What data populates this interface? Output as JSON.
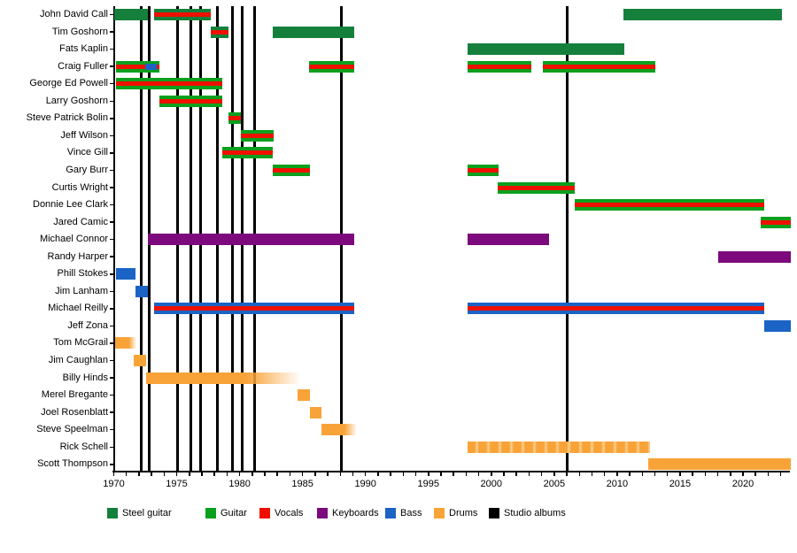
{
  "chart_data": {
    "type": "bar",
    "subtype": "membership-timeline-gantt",
    "title": "",
    "x_axis": {
      "min": 1970,
      "max": 2023.8,
      "major_tick_labels": [
        "1970",
        "1975",
        "1980",
        "1985",
        "1990",
        "1995",
        "2000",
        "2005",
        "2010",
        "2015",
        "2020"
      ],
      "major_tick_years": [
        1970,
        1975,
        1980,
        1985,
        1990,
        1995,
        2000,
        2005,
        2010,
        2015,
        2020
      ],
      "minor_tick_interval": 1,
      "grid": false
    },
    "colors": {
      "steel_guitar": "#15803c",
      "guitar": "#0aa01e",
      "vocals": "#ee1100",
      "keyboards": "#7c0a7c",
      "bass": "#1b63c5",
      "drums": "#f8a338",
      "studio_albums": "#000000"
    },
    "legend": [
      {
        "key": "steel_guitar",
        "label": "Steel guitar"
      },
      {
        "key": "guitar",
        "label": "Guitar"
      },
      {
        "key": "vocals",
        "label": "Vocals"
      },
      {
        "key": "keyboards",
        "label": "Keyboards"
      },
      {
        "key": "bass",
        "label": "Bass"
      },
      {
        "key": "drums",
        "label": "Drums"
      },
      {
        "key": "studio_albums",
        "label": "Studio albums"
      }
    ],
    "studio_album_years": [
      1972.2,
      1972.8,
      1975.1,
      1976.1,
      1976.9,
      1978.2,
      1979.4,
      1980.2,
      1981.2,
      1988.1,
      2006.0
    ],
    "members": [
      {
        "name": "John David Call",
        "segments": [
          {
            "start": 1970.0,
            "end": 1972.7,
            "instrument": "steel_guitar",
            "vocals": false
          },
          {
            "start": 1973.2,
            "end": 1977.7,
            "instrument": "steel_guitar",
            "vocals": true
          },
          {
            "start": 2010.5,
            "end": 2023.1,
            "instrument": "steel_guitar",
            "vocals": false
          }
        ]
      },
      {
        "name": "Tim Goshorn",
        "segments": [
          {
            "start": 1977.7,
            "end": 1979.1,
            "instrument": "steel_guitar",
            "vocals": true
          },
          {
            "start": 1982.6,
            "end": 1989.1,
            "instrument": "steel_guitar",
            "vocals": false
          }
        ]
      },
      {
        "name": "Fats Kaplin",
        "segments": [
          {
            "start": 1998.1,
            "end": 2010.6,
            "instrument": "steel_guitar",
            "vocals": false
          }
        ]
      },
      {
        "name": "Craig Fuller",
        "segments": [
          {
            "start": 1970.2,
            "end": 1973.6,
            "instrument": "guitar",
            "vocals": true
          },
          {
            "start": 1985.5,
            "end": 1989.1,
            "instrument": "guitar",
            "vocals": true
          },
          {
            "start": 1998.1,
            "end": 2003.2,
            "instrument": "guitar",
            "vocals": true
          },
          {
            "start": 2004.1,
            "end": 2013.0,
            "instrument": "guitar",
            "vocals": true
          }
        ],
        "overlays": [
          {
            "start": 1972.5,
            "end": 1973.4,
            "instrument": "bass"
          }
        ]
      },
      {
        "name": "George Ed Powell",
        "segments": [
          {
            "start": 1970.2,
            "end": 1978.6,
            "instrument": "guitar",
            "vocals": true
          }
        ]
      },
      {
        "name": "Larry Goshorn",
        "segments": [
          {
            "start": 1973.6,
            "end": 1978.6,
            "instrument": "guitar",
            "vocals": true
          }
        ]
      },
      {
        "name": "Steve Patrick Bolin",
        "segments": [
          {
            "start": 1979.1,
            "end": 1980.1,
            "instrument": "guitar",
            "vocals": true
          }
        ]
      },
      {
        "name": "Jeff Wilson",
        "segments": [
          {
            "start": 1980.1,
            "end": 1982.7,
            "instrument": "guitar",
            "vocals": true
          }
        ]
      },
      {
        "name": "Vince Gill",
        "segments": [
          {
            "start": 1978.6,
            "end": 1982.6,
            "instrument": "guitar",
            "vocals": true
          }
        ]
      },
      {
        "name": "Gary Burr",
        "segments": [
          {
            "start": 1982.6,
            "end": 1985.6,
            "instrument": "guitar",
            "vocals": true
          },
          {
            "start": 1998.1,
            "end": 2000.6,
            "instrument": "guitar",
            "vocals": true
          }
        ]
      },
      {
        "name": "Curtis Wright",
        "segments": [
          {
            "start": 2000.5,
            "end": 2006.6,
            "instrument": "guitar",
            "vocals": true
          }
        ]
      },
      {
        "name": "Donnie Lee Clark",
        "segments": [
          {
            "start": 2006.6,
            "end": 2021.7,
            "instrument": "guitar",
            "vocals": true
          }
        ]
      },
      {
        "name": "Jared Camic",
        "segments": [
          {
            "start": 2021.4,
            "end": 2023.8,
            "instrument": "guitar",
            "vocals": true
          }
        ]
      },
      {
        "name": "Michael Connor",
        "segments": [
          {
            "start": 1972.7,
            "end": 1989.1,
            "instrument": "keyboards",
            "vocals": false
          },
          {
            "start": 1998.1,
            "end": 2004.6,
            "instrument": "keyboards",
            "vocals": false
          }
        ]
      },
      {
        "name": "Randy Harper",
        "segments": [
          {
            "start": 2018.0,
            "end": 2023.8,
            "instrument": "keyboards",
            "vocals": false
          }
        ]
      },
      {
        "name": "Phill Stokes",
        "segments": [
          {
            "start": 1970.2,
            "end": 1971.7,
            "instrument": "bass",
            "vocals": false
          }
        ]
      },
      {
        "name": "Jim Lanham",
        "segments": [
          {
            "start": 1971.7,
            "end": 1972.7,
            "instrument": "bass",
            "vocals": false
          }
        ]
      },
      {
        "name": "Michael Reilly",
        "segments": [
          {
            "start": 1973.2,
            "end": 1989.1,
            "instrument": "bass",
            "vocals": true
          },
          {
            "start": 1998.1,
            "end": 2021.7,
            "instrument": "bass",
            "vocals": true
          }
        ]
      },
      {
        "name": "Jeff Zona",
        "segments": [
          {
            "start": 2021.7,
            "end": 2023.8,
            "instrument": "bass",
            "vocals": false
          }
        ]
      },
      {
        "name": "Tom McGrail",
        "segments": [
          {
            "start": 1970.1,
            "end": 1971.8,
            "instrument": "drums",
            "vocals": false,
            "fade": "right"
          }
        ]
      },
      {
        "name": "Jim Caughlan",
        "segments": [
          {
            "start": 1971.6,
            "end": 1972.6,
            "instrument": "drums",
            "vocals": false
          }
        ]
      },
      {
        "name": "Billy Hinds",
        "segments": [
          {
            "start": 1972.6,
            "end": 1984.9,
            "instrument": "drums",
            "vocals": false,
            "fade": "right"
          }
        ]
      },
      {
        "name": "Merel Bregante",
        "segments": [
          {
            "start": 1984.6,
            "end": 1985.6,
            "instrument": "drums",
            "vocals": false
          }
        ]
      },
      {
        "name": "Joel Rosenblatt",
        "segments": [
          {
            "start": 1985.6,
            "end": 1986.5,
            "instrument": "drums",
            "vocals": false
          }
        ]
      },
      {
        "name": "Steve Speelman",
        "segments": [
          {
            "start": 1986.5,
            "end": 1989.3,
            "instrument": "drums",
            "vocals": false,
            "fade": "right"
          }
        ]
      },
      {
        "name": "Rick Schell",
        "segments": [
          {
            "start": 1998.1,
            "end": 2012.6,
            "instrument": "drums",
            "vocals": false,
            "texture": "scalloped"
          }
        ]
      },
      {
        "name": "Scott Thompson",
        "segments": [
          {
            "start": 2012.5,
            "end": 2023.8,
            "instrument": "drums",
            "vocals": false
          }
        ]
      }
    ]
  }
}
